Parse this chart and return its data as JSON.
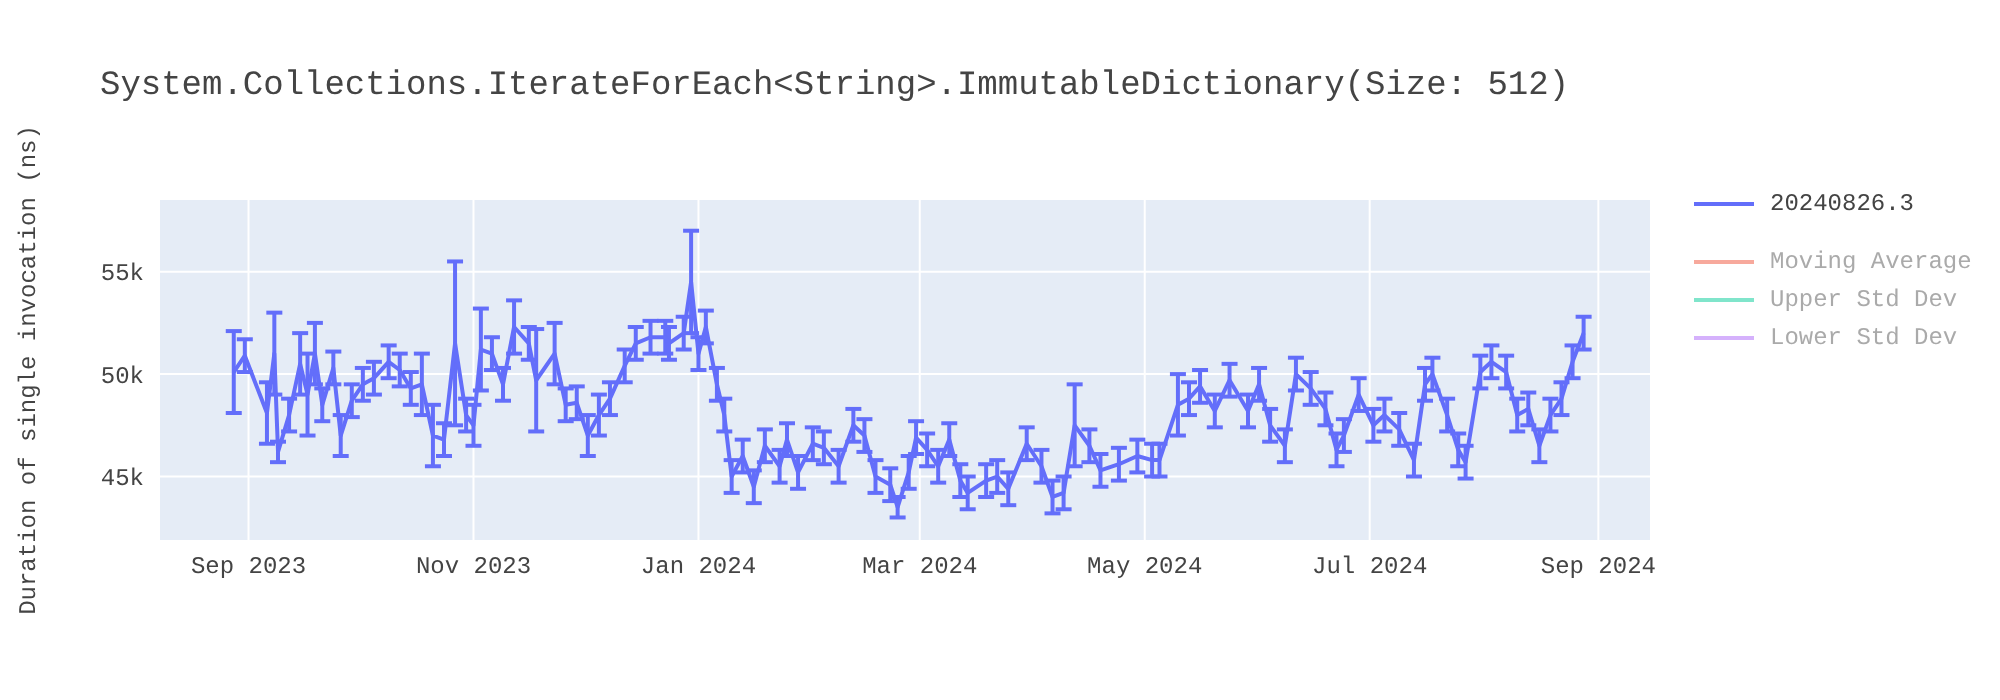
{
  "chart_data": {
    "type": "line",
    "title": "System.Collections.IterateForEach<String>.ImmutableDictionary(Size: 512)",
    "ylabel": "Duration of single invocation (ns)",
    "x": [
      "2023-08-28",
      "2023-08-31",
      "2023-09-06",
      "2023-09-08",
      "2023-09-09",
      "2023-09-12",
      "2023-09-15",
      "2023-09-17",
      "2023-09-19",
      "2023-09-21",
      "2023-09-24",
      "2023-09-26",
      "2023-09-29",
      "2023-10-02",
      "2023-10-05",
      "2023-10-09",
      "2023-10-12",
      "2023-10-15",
      "2023-10-18",
      "2023-10-21",
      "2023-10-24",
      "2023-10-27",
      "2023-10-30",
      "2023-11-01",
      "2023-11-03",
      "2023-11-06",
      "2023-11-09",
      "2023-11-12",
      "2023-11-16",
      "2023-11-18",
      "2023-11-23",
      "2023-11-26",
      "2023-11-29",
      "2023-12-02",
      "2023-12-05",
      "2023-12-08",
      "2023-12-12",
      "2023-12-15",
      "2023-12-19",
      "2023-12-23",
      "2023-12-24",
      "2023-12-28",
      "2023-12-30",
      "2024-01-01",
      "2024-01-03",
      "2024-01-06",
      "2024-01-08",
      "2024-01-10",
      "2024-01-13",
      "2024-01-16",
      "2024-01-19",
      "2024-01-23",
      "2024-01-25",
      "2024-01-28",
      "2024-02-01",
      "2024-02-04",
      "2024-02-08",
      "2024-02-12",
      "2024-02-15",
      "2024-02-18",
      "2024-02-22",
      "2024-02-24",
      "2024-02-27",
      "2024-02-29",
      "2024-03-03",
      "2024-03-06",
      "2024-03-09",
      "2024-03-12",
      "2024-03-14",
      "2024-03-19",
      "2024-03-22",
      "2024-03-25",
      "2024-03-30",
      "2024-04-03",
      "2024-04-06",
      "2024-04-09",
      "2024-04-12",
      "2024-04-16",
      "2024-04-19",
      "2024-04-24",
      "2024-04-29",
      "2024-05-03",
      "2024-05-05",
      "2024-05-10",
      "2024-05-13",
      "2024-05-16",
      "2024-05-20",
      "2024-05-24",
      "2024-05-29",
      "2024-06-01",
      "2024-06-04",
      "2024-06-08",
      "2024-06-11",
      "2024-06-15",
      "2024-06-19",
      "2024-06-22",
      "2024-06-24",
      "2024-06-28",
      "2024-07-02",
      "2024-07-05",
      "2024-07-09",
      "2024-07-13",
      "2024-07-16",
      "2024-07-18",
      "2024-07-22",
      "2024-07-25",
      "2024-07-27",
      "2024-07-31",
      "2024-08-03",
      "2024-08-07",
      "2024-08-10",
      "2024-08-13",
      "2024-08-16",
      "2024-08-19",
      "2024-08-22",
      "2024-08-25",
      "2024-08-28"
    ],
    "series": [
      {
        "name": "20240826.3",
        "color": "#636efa",
        "values": [
          50100,
          50900,
          48100,
          51000,
          46200,
          48000,
          50500,
          49000,
          51000,
          48500,
          50300,
          47000,
          48700,
          49500,
          49800,
          50600,
          50200,
          49300,
          49500,
          47000,
          46800,
          51500,
          48000,
          47500,
          51200,
          51000,
          49500,
          52300,
          51500,
          49700,
          51000,
          48500,
          48600,
          47000,
          48000,
          48800,
          50400,
          51500,
          51800,
          51800,
          51500,
          52000,
          54500,
          51000,
          52300,
          49500,
          48000,
          45000,
          46000,
          44500,
          46500,
          45500,
          46800,
          45200,
          46600,
          46400,
          45500,
          47500,
          47000,
          45000,
          44600,
          43500,
          45200,
          46900,
          46300,
          45500,
          46800,
          44800,
          44200,
          44800,
          45000,
          44400,
          46600,
          45500,
          44000,
          44200,
          47500,
          46500,
          45300,
          45600,
          46000,
          45800,
          45800,
          48500,
          48800,
          49400,
          48200,
          49700,
          48200,
          49500,
          47500,
          46500,
          50000,
          49300,
          48300,
          46300,
          47000,
          49000,
          47500,
          48000,
          47300,
          45800,
          49500,
          50000,
          48000,
          46300,
          45700,
          50100,
          50600,
          50100,
          48000,
          48300,
          46500,
          48000,
          48800,
          50600,
          52000
        ],
        "errors": [
          2000,
          800,
          1500,
          2000,
          500,
          800,
          1500,
          2000,
          1500,
          800,
          800,
          1000,
          800,
          800,
          800,
          800,
          800,
          800,
          1500,
          1500,
          800,
          4000,
          800,
          1000,
          2000,
          800,
          800,
          1300,
          800,
          2500,
          1500,
          800,
          800,
          1000,
          1000,
          800,
          800,
          800,
          800,
          800,
          800,
          800,
          2500,
          800,
          800,
          800,
          800,
          800,
          800,
          800,
          800,
          800,
          800,
          800,
          800,
          800,
          800,
          800,
          800,
          800,
          800,
          500,
          800,
          800,
          800,
          800,
          800,
          800,
          800,
          800,
          800,
          800,
          800,
          800,
          800,
          800,
          2000,
          800,
          800,
          800,
          800,
          800,
          800,
          1500,
          800,
          800,
          800,
          800,
          800,
          800,
          800,
          800,
          800,
          800,
          800,
          800,
          800,
          800,
          800,
          800,
          800,
          800,
          800,
          800,
          800,
          800,
          800,
          800,
          800,
          800,
          800,
          800,
          800,
          800,
          800,
          800,
          800
        ]
      },
      {
        "name": "Moving Average",
        "color": "#f7a99c",
        "values": [
          null,
          null,
          null,
          null,
          null,
          null,
          null,
          null,
          null,
          null,
          null,
          null,
          null,
          null,
          null,
          null,
          null,
          null,
          null,
          null,
          null,
          null,
          null,
          null,
          null,
          null,
          null,
          null,
          null,
          null,
          null,
          null,
          null,
          null,
          null,
          null,
          null,
          null,
          null,
          null,
          null,
          null,
          null,
          null,
          null,
          null,
          null,
          null,
          null,
          null,
          null,
          null,
          null,
          null,
          null,
          null,
          null,
          null,
          null,
          null,
          null,
          null,
          null,
          null,
          null,
          null,
          null,
          null,
          null,
          null,
          null,
          null,
          null,
          null,
          null,
          null,
          null,
          null,
          null,
          null,
          null,
          null,
          null,
          null,
          null,
          null,
          null,
          null,
          null,
          null,
          null,
          null,
          null,
          null,
          null,
          null,
          null,
          null,
          null,
          null,
          null,
          null,
          null,
          null,
          null,
          null,
          null,
          null,
          null,
          null,
          null,
          null,
          null,
          null,
          null,
          null,
          null
        ]
      },
      {
        "name": "Upper Std Dev",
        "color": "#80e5cb",
        "values": [
          null,
          null,
          null,
          null,
          null,
          null,
          null,
          null,
          null,
          null,
          null,
          null,
          null,
          null,
          null,
          null,
          null,
          null,
          null,
          null,
          null,
          null,
          null,
          null,
          null,
          null,
          null,
          null,
          null,
          null,
          null,
          null,
          null,
          null,
          null,
          null,
          null,
          null,
          null,
          null,
          null,
          null,
          null,
          null,
          null,
          null,
          null,
          null,
          null,
          null,
          null,
          null,
          null,
          null,
          null,
          null,
          null,
          null,
          null,
          null,
          null,
          null,
          null,
          null,
          null,
          null,
          null,
          null,
          null,
          null,
          null,
          null,
          null,
          null,
          null,
          null,
          null,
          null,
          null,
          null,
          null,
          null,
          null,
          null,
          null,
          null,
          null,
          null,
          null,
          null,
          null,
          null,
          null,
          null,
          null,
          null,
          null,
          null,
          null,
          null,
          null,
          null,
          null,
          null,
          null,
          null,
          null,
          null,
          null,
          null,
          null,
          null,
          null,
          null,
          null,
          null,
          null
        ]
      },
      {
        "name": "Lower Std Dev",
        "color": "#d5b1fc",
        "values": [
          null,
          null,
          null,
          null,
          null,
          null,
          null,
          null,
          null,
          null,
          null,
          null,
          null,
          null,
          null,
          null,
          null,
          null,
          null,
          null,
          null,
          null,
          null,
          null,
          null,
          null,
          null,
          null,
          null,
          null,
          null,
          null,
          null,
          null,
          null,
          null,
          null,
          null,
          null,
          null,
          null,
          null,
          null,
          null,
          null,
          null,
          null,
          null,
          null,
          null,
          null,
          null,
          null,
          null,
          null,
          null,
          null,
          null,
          null,
          null,
          null,
          null,
          null,
          null,
          null,
          null,
          null,
          null,
          null,
          null,
          null,
          null,
          null,
          null,
          null,
          null,
          null,
          null,
          null,
          null,
          null,
          null,
          null,
          null,
          null,
          null,
          null,
          null,
          null,
          null,
          null,
          null,
          null,
          null,
          null,
          null,
          null,
          null,
          null,
          null,
          null,
          null,
          null,
          null,
          null,
          null,
          null,
          null,
          null,
          null,
          null,
          null,
          null,
          null,
          null,
          null,
          null
        ]
      }
    ],
    "xlim": [
      "2023-08-08",
      "2024-09-15"
    ],
    "xticks": [
      {
        "value": "2023-09-01",
        "label": "Sep 2023"
      },
      {
        "value": "2023-11-01",
        "label": "Nov 2023"
      },
      {
        "value": "2024-01-01",
        "label": "Jan 2024"
      },
      {
        "value": "2024-03-01",
        "label": "Mar 2024"
      },
      {
        "value": "2024-05-01",
        "label": "May 2024"
      },
      {
        "value": "2024-07-01",
        "label": "Jul 2024"
      },
      {
        "value": "2024-09-01",
        "label": "Sep 2024"
      }
    ],
    "ylim": [
      41900,
      58500
    ],
    "yticks": [
      {
        "value": 45000,
        "label": "45k"
      },
      {
        "value": 50000,
        "label": "50k"
      },
      {
        "value": 55000,
        "label": "55k"
      }
    ],
    "grid": true,
    "legend": "top right",
    "line_style": "solid",
    "marker": "none"
  }
}
